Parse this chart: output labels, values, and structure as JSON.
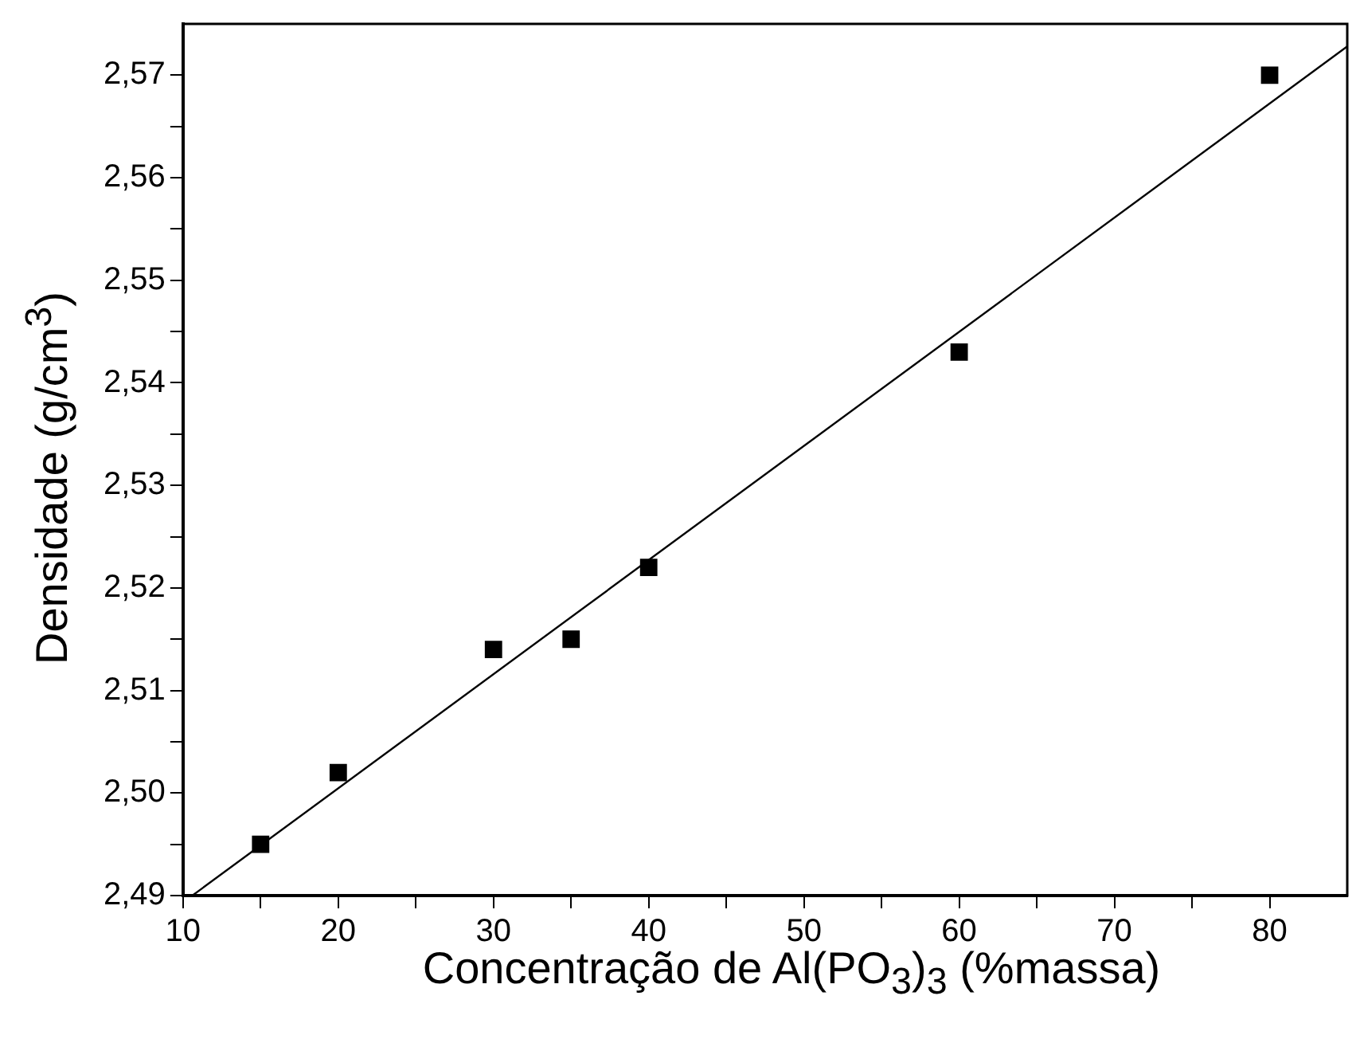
{
  "chart_data": {
    "type": "scatter",
    "xlabel": "Concentração de Al(PO$_{3}$)$_{3}$ (%massa)",
    "ylabel": "Densidade (g/cm$^{3}$)",
    "xlim": [
      10,
      85
    ],
    "xticks": [
      10,
      {
        "value": 15,
        "label": null
      },
      20,
      {
        "value": 25,
        "label": null
      },
      30,
      {
        "value": 35,
        "label": null
      },
      40,
      {
        "value": 45,
        "label": null
      },
      50,
      {
        "value": 55,
        "label": null
      },
      60,
      {
        "value": 65,
        "label": null
      },
      70,
      {
        "value": 75,
        "label": null
      },
      80
    ],
    "ylim": [
      2.49,
      2.575
    ],
    "yticks": [
      {
        "value": 2.49,
        "label": "2,49"
      },
      {
        "value": 2.495,
        "label": null
      },
      {
        "value": 2.5,
        "label": "2,50"
      },
      {
        "value": 2.505,
        "label": null
      },
      {
        "value": 2.51,
        "label": "2,51"
      },
      {
        "value": 2.515,
        "label": null
      },
      {
        "value": 2.52,
        "label": "2,52"
      },
      {
        "value": 2.525,
        "label": null
      },
      {
        "value": 2.53,
        "label": "2,53"
      },
      {
        "value": 2.535,
        "label": null
      },
      {
        "value": 2.54,
        "label": "2,54"
      },
      {
        "value": 2.545,
        "label": null
      },
      {
        "value": 2.55,
        "label": "2,55"
      },
      {
        "value": 2.555,
        "label": null
      },
      {
        "value": 2.56,
        "label": "2,56"
      },
      {
        "value": 2.565,
        "label": null
      },
      {
        "value": 2.57,
        "label": "2,57"
      }
    ],
    "series": [
      {
        "type": "scatter",
        "marker": "square",
        "color": "#000000",
        "x": [
          15,
          20,
          30,
          35,
          40,
          60,
          80
        ],
        "values": [
          2.495,
          2.502,
          2.514,
          2.515,
          2.522,
          2.543,
          2.57
        ]
      },
      {
        "type": "line",
        "marker": "none",
        "line_style": "solid",
        "color": "#000000",
        "x": [
          10.6,
          85
        ],
        "values": [
          2.49,
          2.5728
        ]
      }
    ]
  }
}
